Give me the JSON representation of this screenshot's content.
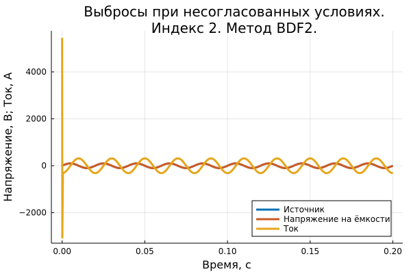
{
  "chart_data": {
    "type": "line",
    "title_line1": "Выбросы при несогласованных условиях.",
    "title_line2": "Индекс 2. Метод BDF2.",
    "xlabel": "Время, с",
    "ylabel": "Напряжение, В; Ток, А",
    "xlim": [
      -0.0065,
      0.206
    ],
    "ylim": [
      -3300,
      5750
    ],
    "x_ticks": [
      0.0,
      0.05,
      0.1,
      0.15,
      0.2
    ],
    "x_tick_labels": [
      "0.00",
      "0.05",
      "0.10",
      "0.15",
      "0.20"
    ],
    "y_ticks": [
      -2000,
      0,
      2000,
      4000
    ],
    "y_tick_labels": [
      "−2000",
      "0",
      "2000",
      "4000"
    ],
    "grid": true,
    "legend_position": "bottom-right",
    "legend": [
      "Источник",
      "Напряжение на ёмкости",
      "Ток"
    ],
    "series": [
      {
        "name": "Источник",
        "color": "#0072b2",
        "shape": "sine",
        "amplitude": 100,
        "frequency_hz": 50,
        "phase_deg": 0
      },
      {
        "name": "Напряжение на ёмкости",
        "color": "#cc5a24",
        "shape": "sine",
        "amplitude": 100,
        "frequency_hz": 50,
        "phase_deg": 0
      },
      {
        "name": "Ток",
        "color": "#e6a61a",
        "shape": "cosine_with_initial_spike",
        "amplitude": 314,
        "frequency_hz": 50,
        "phase_deg": 90,
        "spike_max": 5450,
        "spike_min": -3060
      }
    ]
  }
}
